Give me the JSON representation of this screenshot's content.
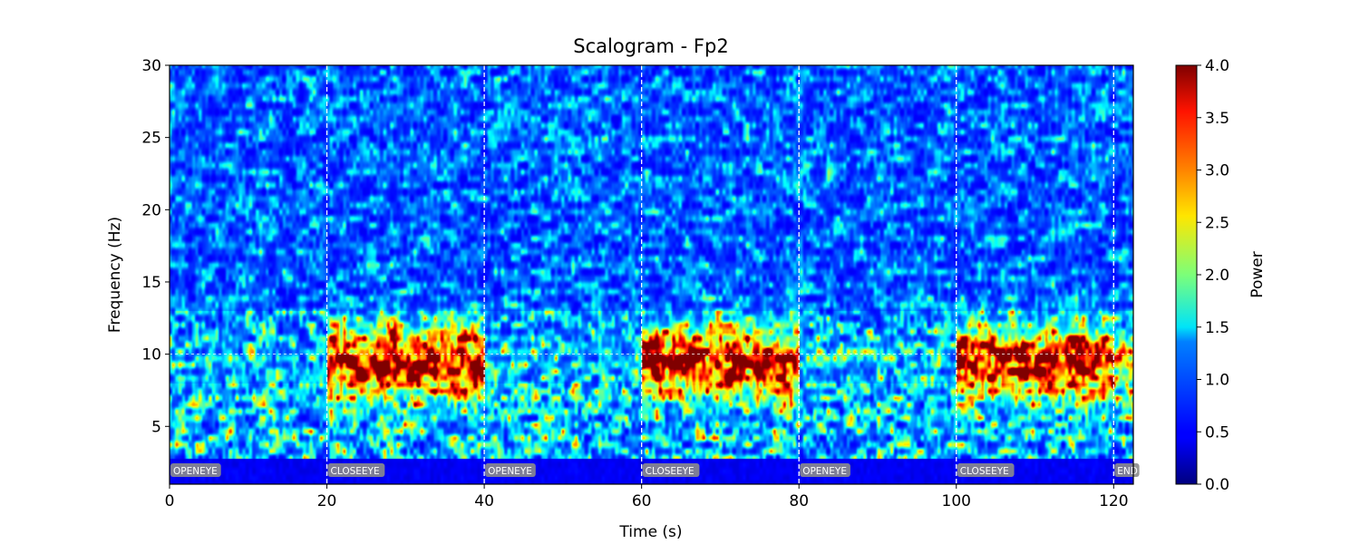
{
  "chart_data": {
    "type": "heatmap",
    "title": "Scalogram - Fp2",
    "xlabel": "Time (s)",
    "ylabel": "Frequency (Hz)",
    "colorbar_label": "Power",
    "colormap": "jet",
    "xlim": [
      0,
      122.5
    ],
    "ylim": [
      1,
      30
    ],
    "clim": [
      0,
      4.0
    ],
    "x_ticks": [
      0,
      20,
      40,
      60,
      80,
      100,
      120
    ],
    "y_ticks": [
      5,
      10,
      15,
      20,
      25,
      30
    ],
    "colorbar_ticks": [
      "0.0",
      "0.5",
      "1.0",
      "1.5",
      "2.0",
      "2.5",
      "3.0",
      "3.5",
      "4.0"
    ],
    "event_markers": [
      {
        "time": 0,
        "label": "OPENEYE"
      },
      {
        "time": 20,
        "label": "CLOSEEYE"
      },
      {
        "time": 40,
        "label": "OPENEYE"
      },
      {
        "time": 60,
        "label": "CLOSEEYE"
      },
      {
        "time": 80,
        "label": "OPENEYE"
      },
      {
        "time": 100,
        "label": "CLOSEEYE"
      },
      {
        "time": 120,
        "label": "END"
      }
    ],
    "reference_line_hz": 10,
    "alpha_band_power": {
      "band_hz": [
        7,
        12
      ],
      "segments": [
        {
          "range": [
            0,
            20
          ],
          "state": "OPENEYE",
          "level": 1.2
        },
        {
          "range": [
            20,
            40
          ],
          "state": "CLOSEEYE",
          "level": 4.0
        },
        {
          "range": [
            40,
            60
          ],
          "state": "OPENEYE",
          "level": 1.3
        },
        {
          "range": [
            60,
            80
          ],
          "state": "CLOSEEYE",
          "level": 4.0
        },
        {
          "range": [
            80,
            100
          ],
          "state": "OPENEYE",
          "level": 1.3
        },
        {
          "range": [
            100,
            120
          ],
          "state": "CLOSEEYE",
          "level": 4.0
        },
        {
          "range": [
            120,
            122.5
          ],
          "state": "END",
          "level": 2.5
        }
      ]
    }
  }
}
